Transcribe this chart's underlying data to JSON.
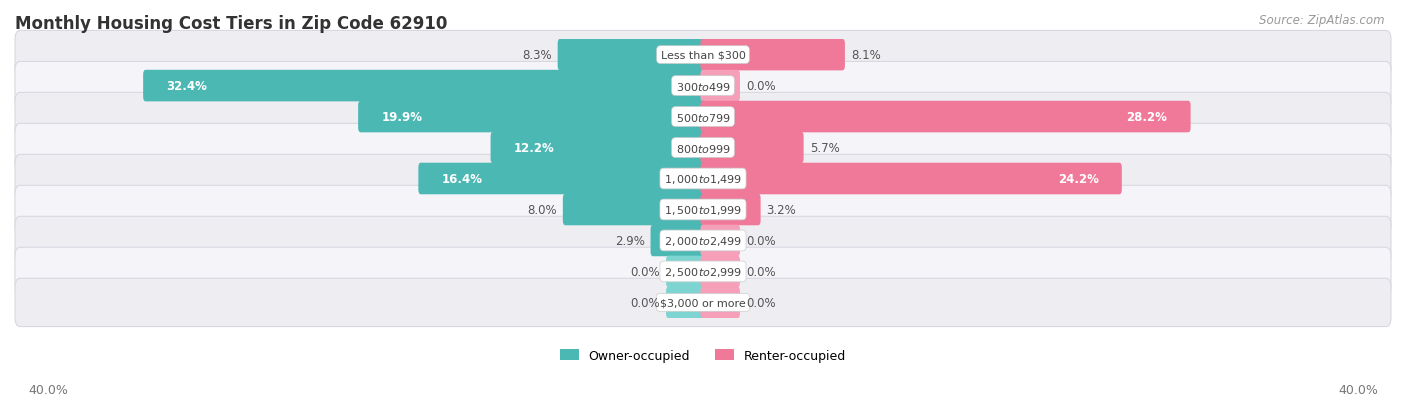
{
  "title": "Monthly Housing Cost Tiers in Zip Code 62910",
  "source": "Source: ZipAtlas.com",
  "categories": [
    "Less than $300",
    "$300 to $499",
    "$500 to $799",
    "$800 to $999",
    "$1,000 to $1,499",
    "$1,500 to $1,999",
    "$2,000 to $2,499",
    "$2,500 to $2,999",
    "$3,000 or more"
  ],
  "owner_values": [
    8.3,
    32.4,
    19.9,
    12.2,
    16.4,
    8.0,
    2.9,
    0.0,
    0.0
  ],
  "renter_values": [
    8.1,
    0.0,
    28.2,
    5.7,
    24.2,
    3.2,
    0.0,
    0.0,
    0.0
  ],
  "owner_color": "#4cb8b4",
  "renter_color": "#f07898",
  "owner_color_light": "#7dd4d0",
  "renter_color_light": "#f5a0b8",
  "row_bg_color_odd": "#ededf2",
  "row_bg_color_even": "#f5f5f9",
  "row_border_color": "#d8d8e0",
  "stub_size": 2.0,
  "xlim": 40.0,
  "title_fontsize": 12,
  "source_fontsize": 8.5,
  "bar_label_fontsize": 8.5,
  "category_fontsize": 8.0,
  "legend_fontsize": 9,
  "label_inside_threshold": 12.0,
  "axis_tick_label": "40.0%"
}
